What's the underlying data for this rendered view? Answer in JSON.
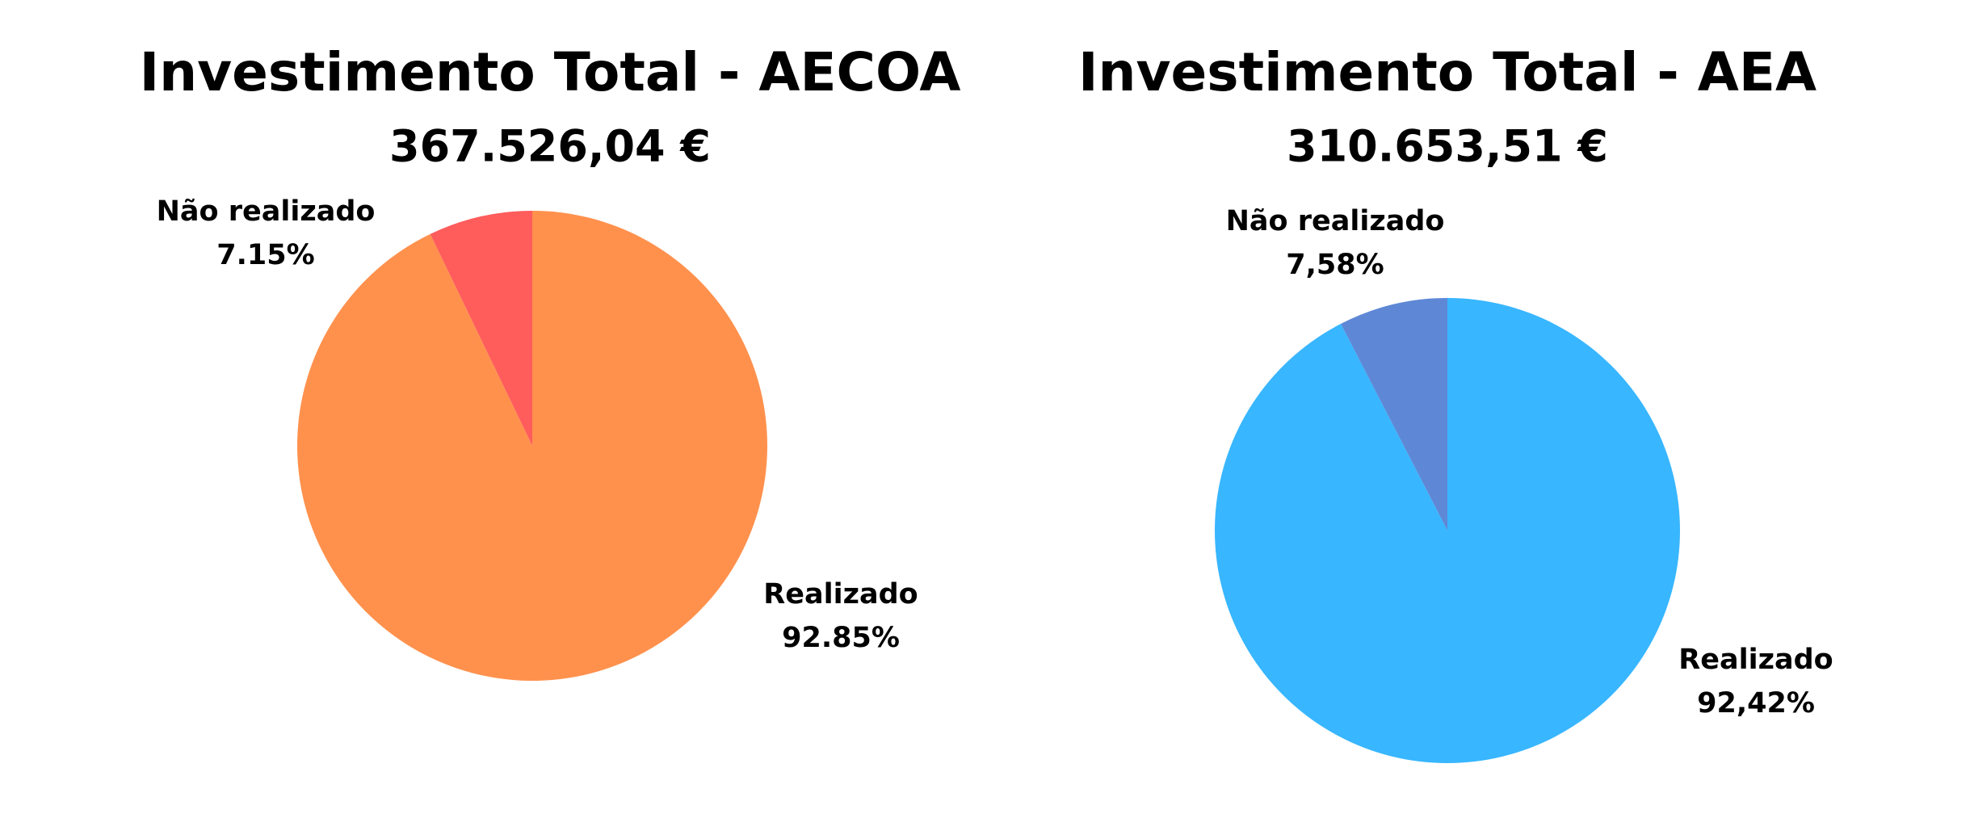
{
  "chart_data": [
    {
      "type": "pie",
      "title": "Investimento Total - AECOA",
      "subtitle": "367.526,04 €",
      "categories": [
        "Não realizado",
        "Realizado"
      ],
      "values": [
        7.15,
        92.85
      ],
      "value_labels": [
        "7.15%",
        "92.85%"
      ],
      "colors": [
        "#FF5C5C",
        "#FF914D"
      ]
    },
    {
      "type": "pie",
      "title": "Investimento Total - AEA",
      "subtitle": "310.653,51 €",
      "categories": [
        "Não realizado",
        "Realizado"
      ],
      "values": [
        7.58,
        92.42
      ],
      "value_labels": [
        "7,58%",
        "92,42%"
      ],
      "colors": [
        "#5E88D6",
        "#38B6FF"
      ]
    }
  ]
}
